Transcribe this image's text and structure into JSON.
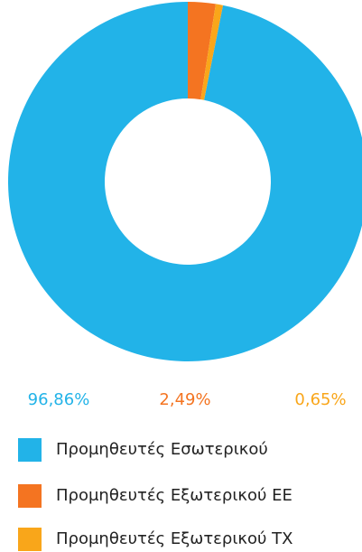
{
  "chart_data": {
    "type": "pie",
    "categories": [
      "Προμηθευτές Εσωτερικού",
      "Προμηθευτές Εξωτερικού ΕΕ",
      "Προμηθευτές Εξωτερικού ΤΧ"
    ],
    "values": [
      96.86,
      2.49,
      0.65
    ],
    "value_labels": [
      "96,86%",
      "2,49%",
      "0,65%"
    ],
    "colors": [
      "#22b3e8",
      "#f47421",
      "#f9a61a"
    ]
  }
}
